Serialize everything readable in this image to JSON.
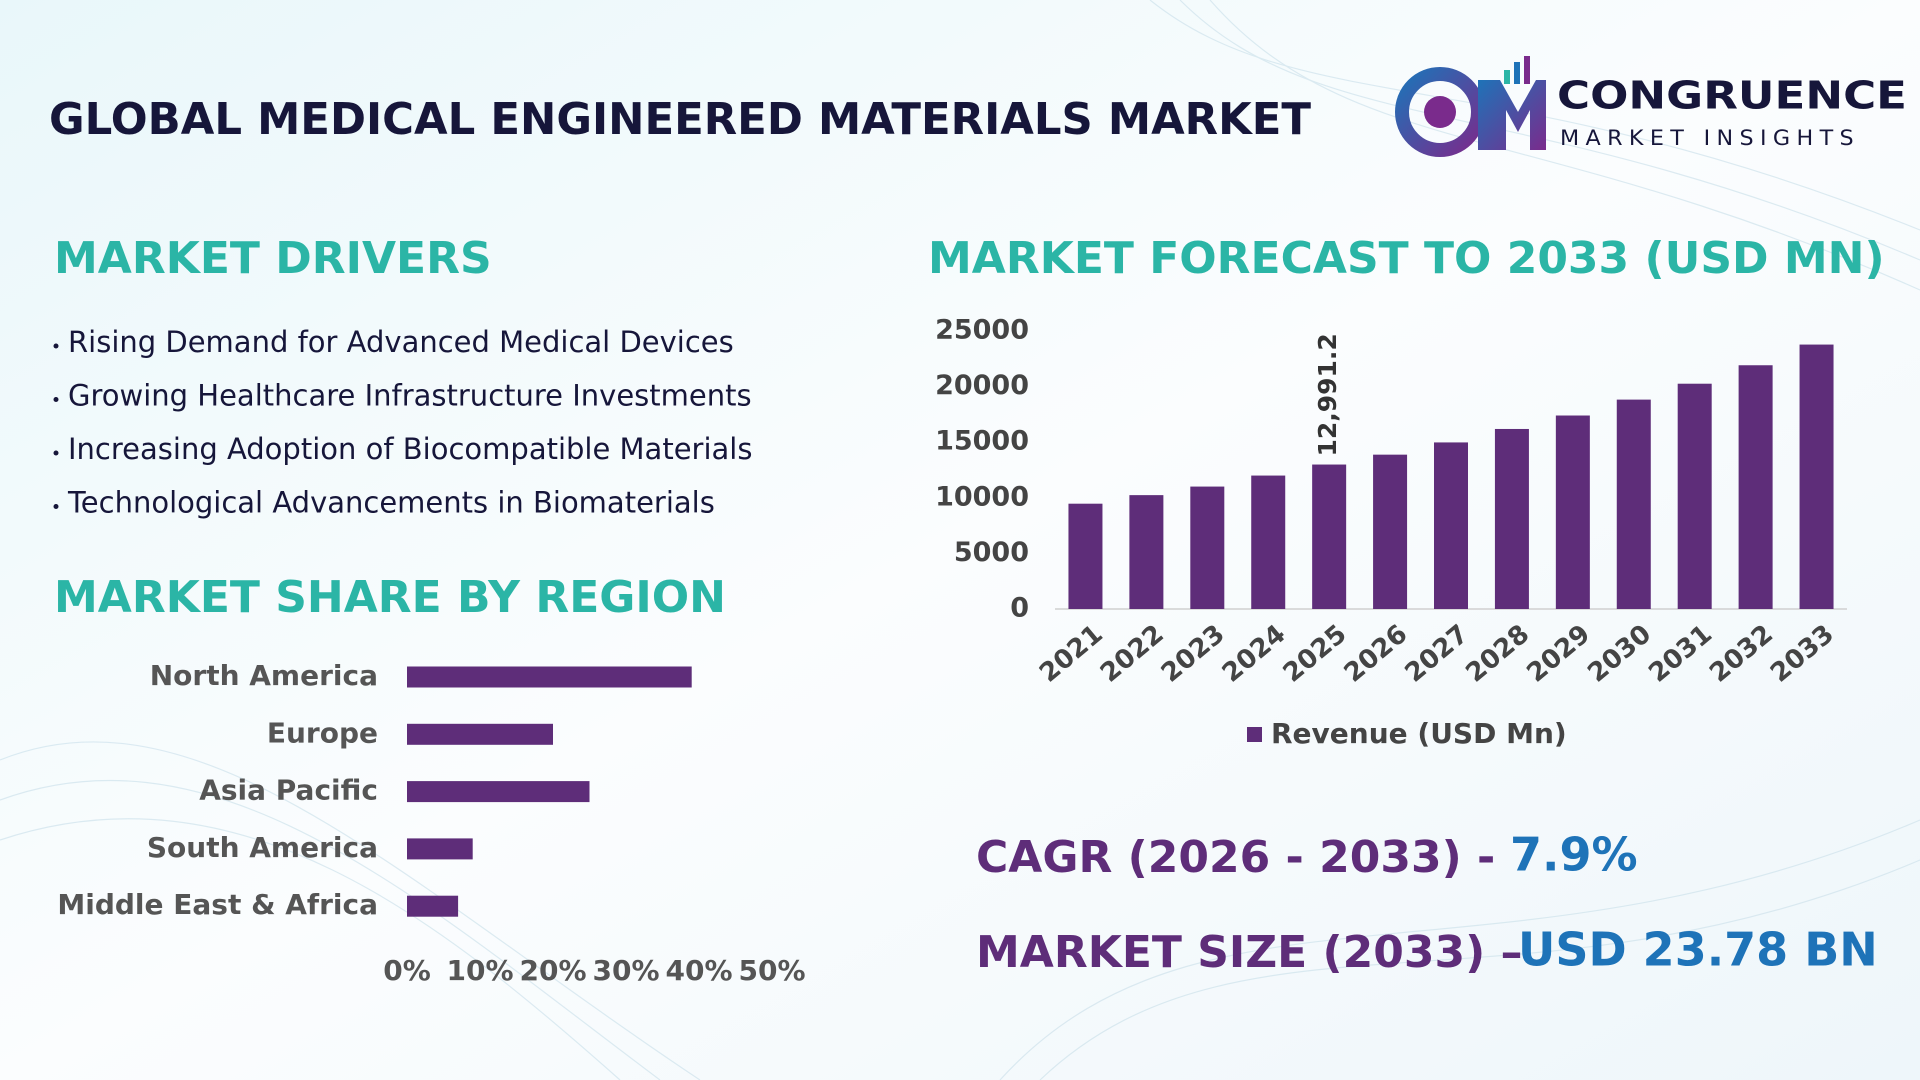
{
  "header": {
    "title": "GLOBAL MEDICAL ENGINEERED MATERIALS MARKET"
  },
  "logo": {
    "name": "CONGRUENCE",
    "tagline": "MARKET INSIGHTS"
  },
  "drivers": {
    "title": "MARKET DRIVERS",
    "items": [
      "Rising Demand for Advanced Medical Devices",
      "Growing Healthcare Infrastructure Investments",
      "Increasing Adoption of Biocompatible Materials",
      "Technological Advancements in Biomaterials"
    ]
  },
  "summary": {
    "cagr_label": "CAGR (2026 - 2033) -",
    "cagr_value": "7.9%",
    "size_label": "MARKET SIZE (2033) –",
    "size_value": "USD 23.78 BN"
  },
  "chart_data": [
    {
      "type": "bar",
      "title": "MARKET FORECAST TO 2033 (USD MN)",
      "categories": [
        "2021",
        "2022",
        "2023",
        "2024",
        "2025",
        "2026",
        "2027",
        "2028",
        "2029",
        "2030",
        "2031",
        "2032",
        "2033"
      ],
      "series": [
        {
          "name": "Revenue (USD Mn)",
          "color": "#5e2d79",
          "values": [
            9470,
            10240,
            11010,
            12000,
            12991.2,
            13880,
            14980,
            16190,
            17400,
            18830,
            20260,
            21920,
            23780
          ],
          "value_labels": [
            null,
            null,
            null,
            null,
            "12,991.2",
            null,
            null,
            null,
            null,
            null,
            null,
            null,
            null
          ]
        }
      ],
      "ylim": [
        0,
        25000
      ],
      "yticks": [
        0,
        5000,
        10000,
        15000,
        20000,
        25000
      ],
      "legend": "bottom"
    },
    {
      "type": "bar",
      "orientation": "horizontal",
      "title": "MARKET SHARE BY REGION",
      "categories": [
        "North America",
        "Europe",
        "Asia Pacific",
        "South America",
        "Middle East & Africa"
      ],
      "values": [
        39,
        20,
        25,
        9,
        7
      ],
      "color": "#5e2d79",
      "xlim": [
        0,
        50
      ],
      "xticks": [
        {
          "value": 0,
          "label": "0%"
        },
        {
          "value": 10,
          "label": "10%"
        },
        {
          "value": 20,
          "label": "20%"
        },
        {
          "value": 30,
          "label": "30%"
        },
        {
          "value": 40,
          "label": "40%"
        },
        {
          "value": 50,
          "label": "50%"
        }
      ]
    }
  ]
}
